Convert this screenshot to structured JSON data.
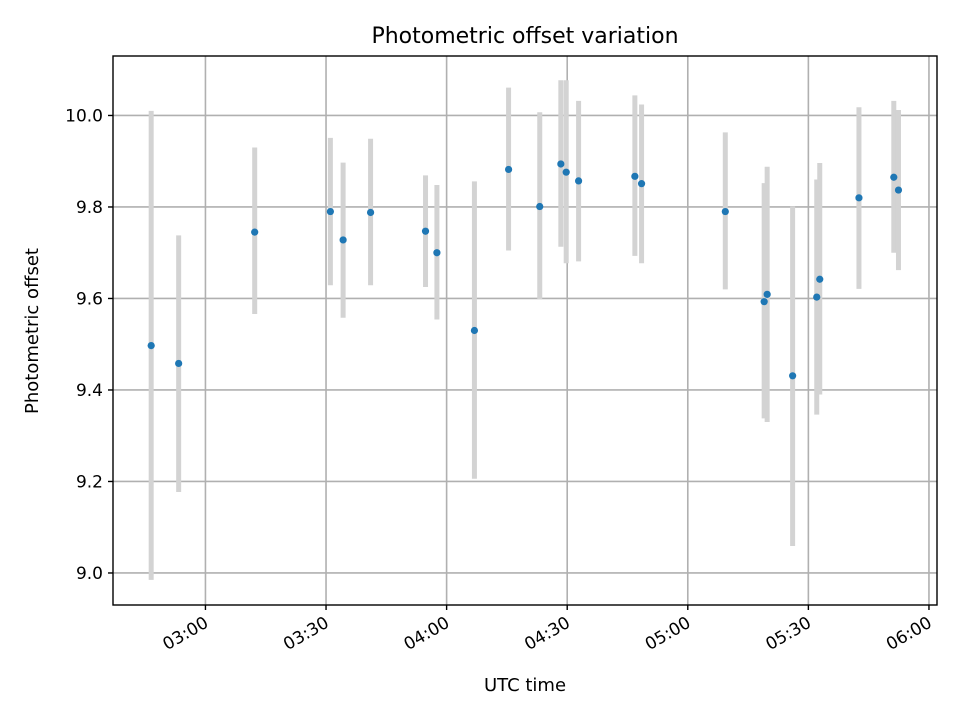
{
  "chart_data": {
    "type": "scatter",
    "title": "Photometric offset variation",
    "xlabel": "UTC time",
    "ylabel": "Photometric offset",
    "xlim": [
      "02:37",
      "06:02"
    ],
    "ylim": [
      8.93,
      10.13
    ],
    "x_ticks": [
      "03:00",
      "03:30",
      "04:00",
      "04:30",
      "05:00",
      "05:30",
      "06:00"
    ],
    "y_ticks": [
      "9.0",
      "9.2",
      "9.4",
      "9.6",
      "9.8",
      "10.0"
    ],
    "grid": true,
    "marker_color": "#1f77b4",
    "errorbar_color": "#d3d3d3",
    "points": [
      {
        "x": "02:46:30",
        "y": 9.497,
        "low": 8.985,
        "high": 10.01
      },
      {
        "x": "02:53:20",
        "y": 9.458,
        "low": 9.177,
        "high": 9.738
      },
      {
        "x": "03:12:15",
        "y": 9.745,
        "low": 9.566,
        "high": 9.93
      },
      {
        "x": "03:31:05",
        "y": 9.79,
        "low": 9.629,
        "high": 9.951
      },
      {
        "x": "03:34:15",
        "y": 9.728,
        "low": 9.558,
        "high": 9.897
      },
      {
        "x": "03:41:05",
        "y": 9.788,
        "low": 9.629,
        "high": 9.949
      },
      {
        "x": "03:54:45",
        "y": 9.747,
        "low": 9.625,
        "high": 9.869
      },
      {
        "x": "03:57:35",
        "y": 9.7,
        "low": 9.554,
        "high": 9.848
      },
      {
        "x": "04:06:55",
        "y": 9.53,
        "low": 9.206,
        "high": 9.856
      },
      {
        "x": "04:15:25",
        "y": 9.882,
        "low": 9.705,
        "high": 10.061
      },
      {
        "x": "04:23:10",
        "y": 9.801,
        "low": 9.598,
        "high": 10.007
      },
      {
        "x": "04:28:25",
        "y": 9.894,
        "low": 9.713,
        "high": 10.077
      },
      {
        "x": "04:29:45",
        "y": 9.876,
        "low": 9.677,
        "high": 10.077
      },
      {
        "x": "04:32:50",
        "y": 9.857,
        "low": 9.681,
        "high": 10.032
      },
      {
        "x": "04:46:50",
        "y": 9.867,
        "low": 9.693,
        "high": 10.044
      },
      {
        "x": "04:48:30",
        "y": 9.851,
        "low": 9.677,
        "high": 10.024
      },
      {
        "x": "05:09:20",
        "y": 9.79,
        "low": 9.62,
        "high": 9.963
      },
      {
        "x": "05:19:00",
        "y": 9.593,
        "low": 9.338,
        "high": 9.852
      },
      {
        "x": "05:19:45",
        "y": 9.609,
        "low": 9.33,
        "high": 9.888
      },
      {
        "x": "05:26:05",
        "y": 9.431,
        "low": 9.059,
        "high": 9.801
      },
      {
        "x": "05:32:05",
        "y": 9.603,
        "low": 9.346,
        "high": 9.86
      },
      {
        "x": "05:32:50",
        "y": 9.642,
        "low": 9.39,
        "high": 9.896
      },
      {
        "x": "05:42:35",
        "y": 9.82,
        "low": 9.621,
        "high": 10.018
      },
      {
        "x": "05:51:15",
        "y": 9.865,
        "low": 9.7,
        "high": 10.032
      },
      {
        "x": "05:52:25",
        "y": 9.837,
        "low": 9.662,
        "high": 10.012
      }
    ]
  }
}
